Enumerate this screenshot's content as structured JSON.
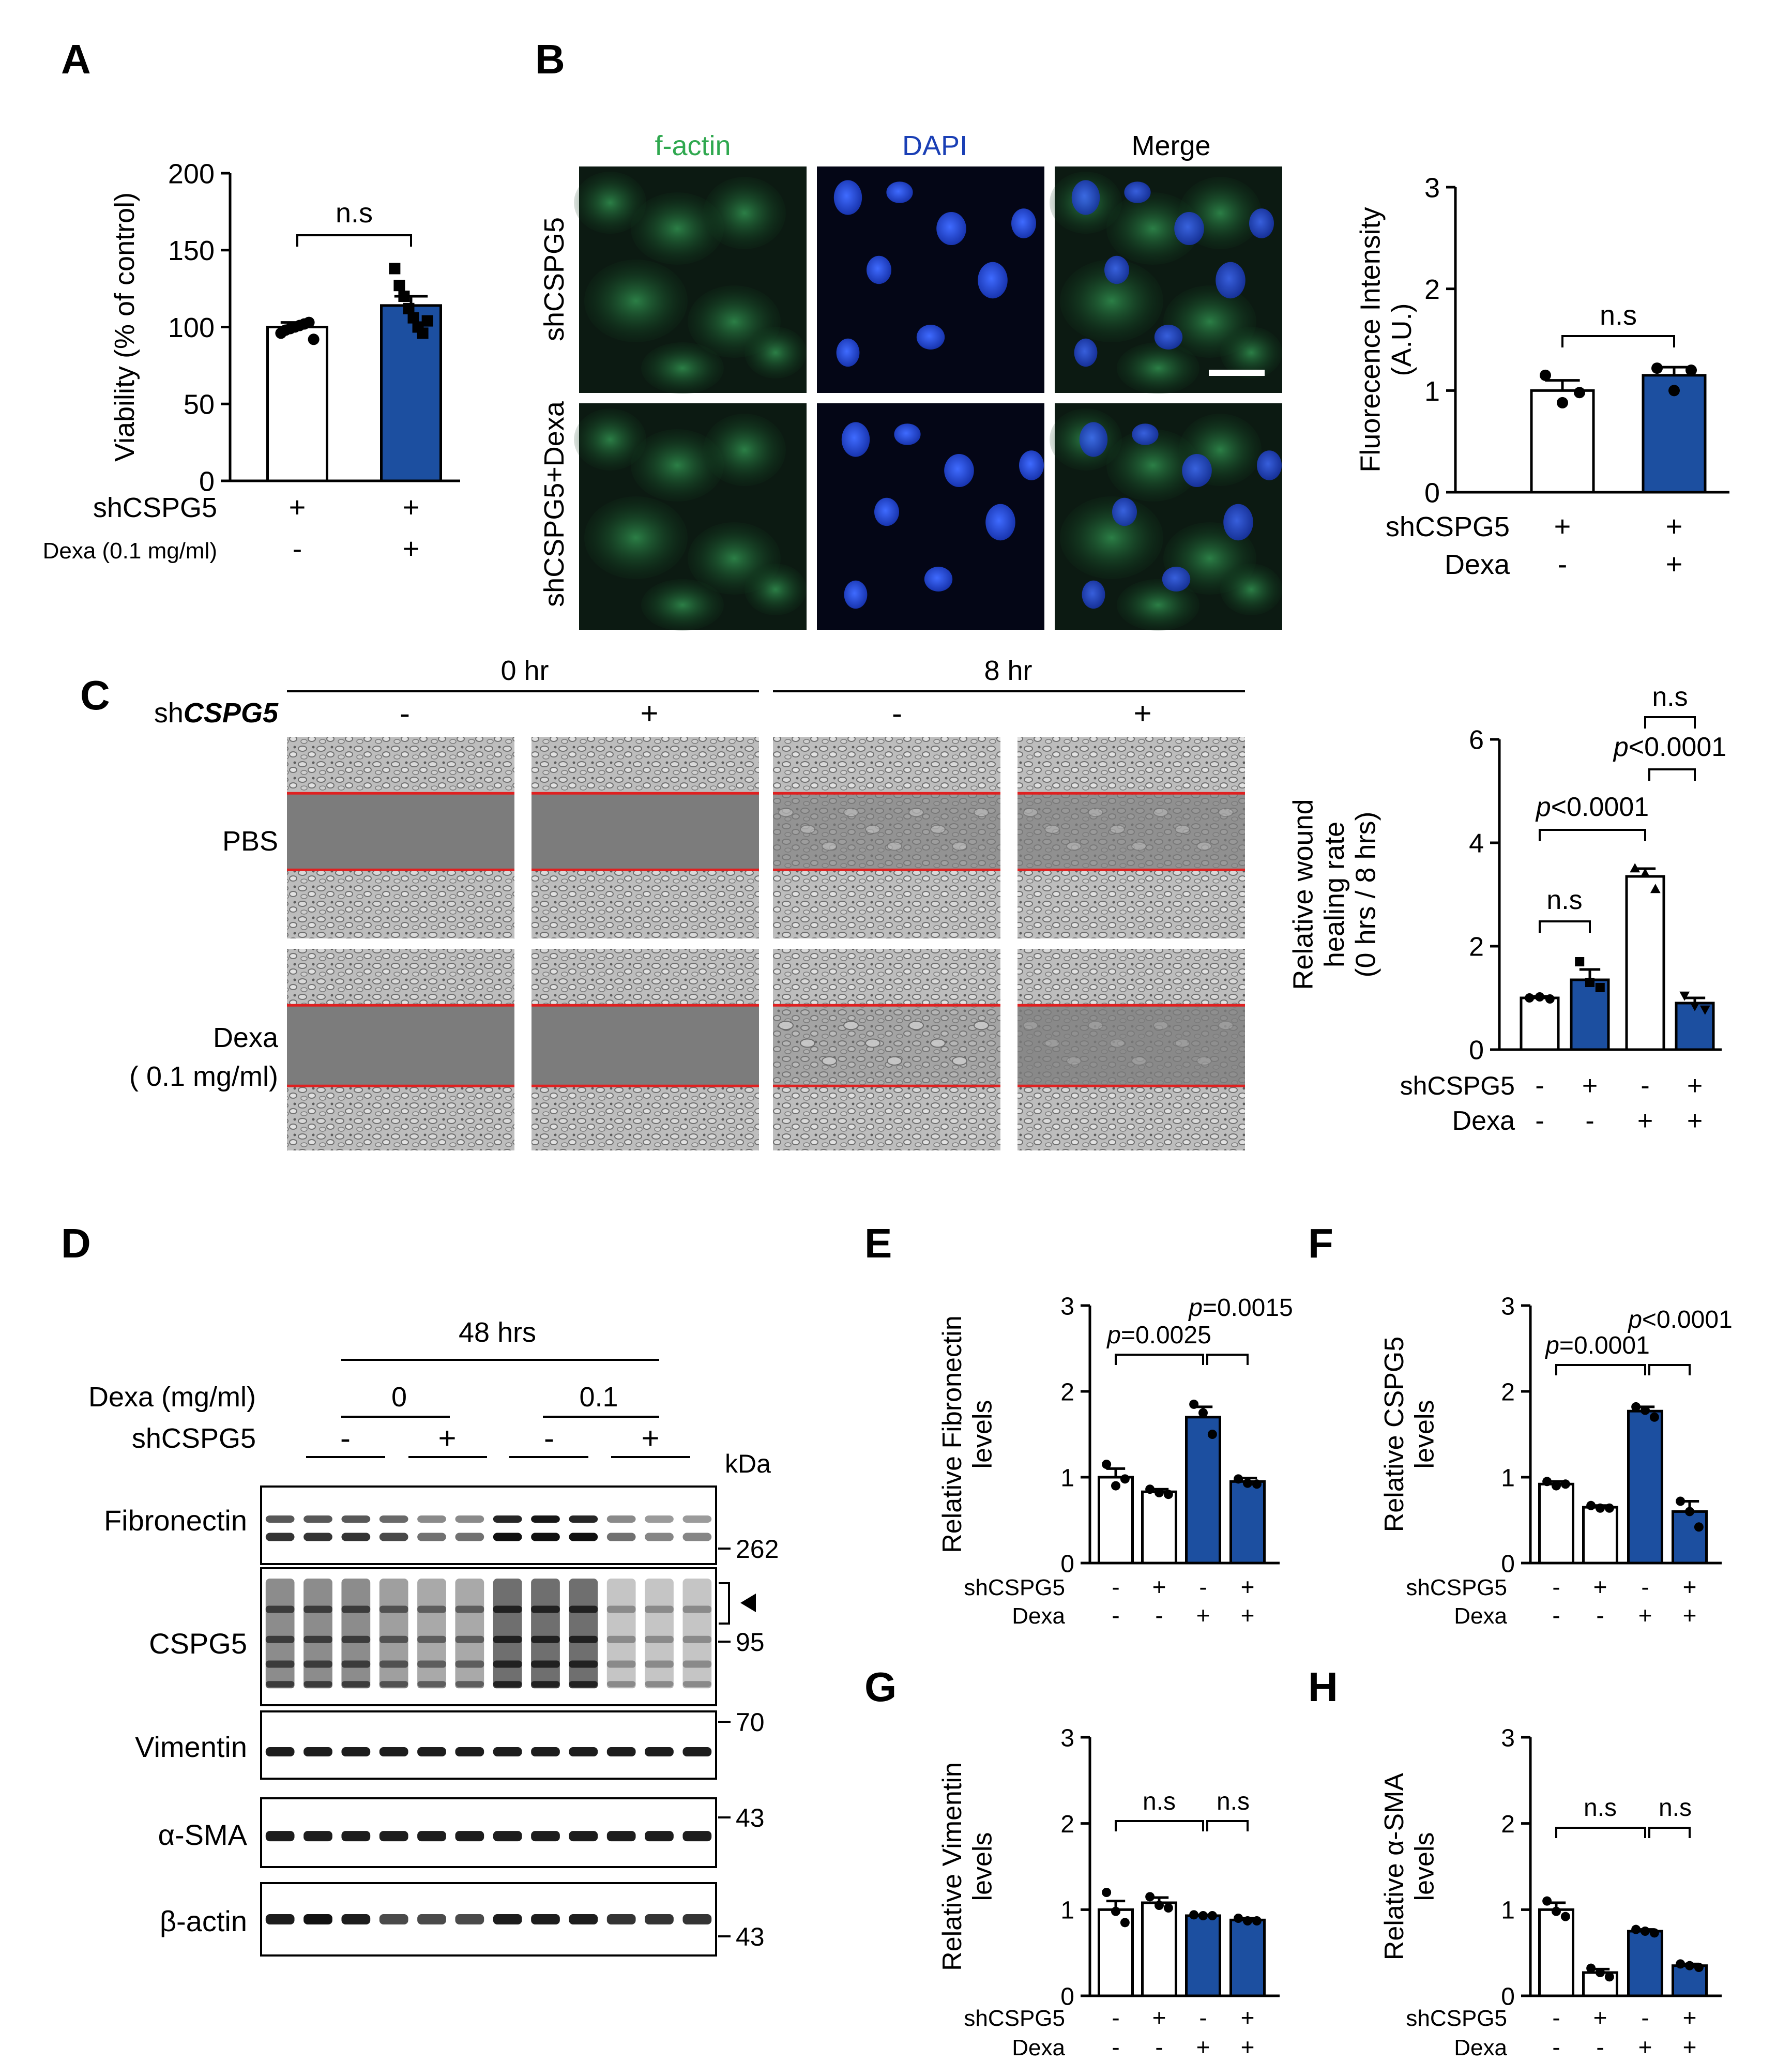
{
  "colors": {
    "blue": "#1c4fa0",
    "white": "#ffffff",
    "black": "#000000",
    "red": "#e02020",
    "green_text": "#2fa84f",
    "blue_text": "#1a3fb5"
  },
  "panel_letters": [
    "A",
    "B",
    "C",
    "D",
    "E",
    "F",
    "G",
    "H"
  ],
  "chart_data": [
    {
      "id": "A",
      "type": "bar",
      "ylabel": "Viability (% of control)",
      "ylim": [
        0,
        200
      ],
      "yticks": [
        0,
        50,
        100,
        150,
        200
      ],
      "row_labels": [
        "shCSPG5",
        "Dexa (0.1 mg/ml)"
      ],
      "bars": [
        {
          "value": 100,
          "sem": 3,
          "fill": "white",
          "signs": [
            "+",
            "-"
          ],
          "points": [
            96,
            98,
            99,
            100,
            101,
            102,
            103,
            92
          ],
          "marker": "circle"
        },
        {
          "value": 114,
          "sem": 6,
          "fill": "blue",
          "signs": [
            "+",
            "+"
          ],
          "points": [
            138,
            127,
            120,
            112,
            106,
            100,
            96,
            104
          ],
          "marker": "square"
        }
      ],
      "comparisons": [
        {
          "from": 0,
          "to": 1,
          "label": "n.s"
        }
      ]
    },
    {
      "id": "B",
      "type": "bar",
      "ylabel": "Fluorecence Intensity (A.U.)",
      "ylim": [
        0,
        3
      ],
      "yticks": [
        0,
        1,
        2,
        3
      ],
      "row_labels": [
        "shCSPG5",
        "Dexa"
      ],
      "bars": [
        {
          "value": 1.0,
          "sem": 0.1,
          "fill": "white",
          "signs": [
            "+",
            "-"
          ],
          "points": [
            1.15,
            0.88,
            0.98
          ],
          "marker": "circle"
        },
        {
          "value": 1.15,
          "sem": 0.08,
          "fill": "blue",
          "signs": [
            "+",
            "+"
          ],
          "points": [
            1.22,
            1.0,
            1.2
          ],
          "marker": "circle"
        }
      ],
      "comparisons": [
        {
          "from": 0,
          "to": 1,
          "label": "n.s"
        }
      ]
    },
    {
      "id": "C",
      "type": "bar",
      "ylabel": "Relative wound healing rate (0 hrs / 8 hrs)",
      "ylim": [
        0,
        6
      ],
      "yticks": [
        0,
        2,
        4,
        6
      ],
      "row_labels": [
        "shCSPG5",
        "Dexa"
      ],
      "bars": [
        {
          "value": 1.0,
          "sem": 0.03,
          "fill": "white",
          "signs": [
            "-",
            "-"
          ],
          "points": [
            1.0,
            1.02,
            0.98
          ],
          "marker": "circle"
        },
        {
          "value": 1.35,
          "sem": 0.2,
          "fill": "blue",
          "signs": [
            "+",
            "-"
          ],
          "points": [
            1.7,
            1.3,
            1.2
          ],
          "marker": "square"
        },
        {
          "value": 3.35,
          "sem": 0.15,
          "fill": "white",
          "signs": [
            "-",
            "+"
          ],
          "points": [
            3.5,
            3.4,
            3.1
          ],
          "marker": "triangle"
        },
        {
          "value": 0.9,
          "sem": 0.1,
          "fill": "blue",
          "signs": [
            "+",
            "+"
          ],
          "points": [
            1.05,
            0.85,
            0.78
          ],
          "marker": "triangle-down"
        }
      ],
      "comparisons": [
        {
          "from": 0,
          "to": 1,
          "label": "n.s"
        },
        {
          "from": 0,
          "to": 2,
          "label": "p<0.0001"
        },
        {
          "from": 2,
          "to": 3,
          "label": "p<0.0001"
        },
        {
          "from": 2,
          "to": 3,
          "label": "n.s"
        }
      ]
    },
    {
      "id": "E",
      "type": "bar",
      "ylabel": "Relative Fibronectin levels",
      "ylim": [
        0,
        3
      ],
      "yticks": [
        0,
        1,
        2,
        3
      ],
      "row_labels": [
        "shCSPG5",
        "Dexa"
      ],
      "bars": [
        {
          "value": 1.0,
          "sem": 0.1,
          "fill": "white",
          "signs": [
            "-",
            "-"
          ],
          "points": [
            1.15,
            0.9,
            0.98
          ]
        },
        {
          "value": 0.83,
          "sem": 0.03,
          "fill": "white",
          "signs": [
            "+",
            "-"
          ],
          "points": [
            0.86,
            0.82,
            0.8
          ]
        },
        {
          "value": 1.7,
          "sem": 0.12,
          "fill": "blue",
          "signs": [
            "-",
            "+"
          ],
          "points": [
            1.85,
            1.75,
            1.5
          ]
        },
        {
          "value": 0.95,
          "sem": 0.04,
          "fill": "blue",
          "signs": [
            "+",
            "+"
          ],
          "points": [
            0.98,
            0.93,
            0.92
          ]
        }
      ],
      "comparisons": [
        {
          "from": 0,
          "to": 2,
          "label": "p=0.0025"
        },
        {
          "from": 2,
          "to": 3,
          "label": "p=0.0015"
        }
      ]
    },
    {
      "id": "F",
      "type": "bar",
      "ylabel": "Relative CSPG5 levels",
      "ylim": [
        0,
        3
      ],
      "yticks": [
        0,
        1,
        2,
        3
      ],
      "row_labels": [
        "shCSPG5",
        "Dexa"
      ],
      "bars": [
        {
          "value": 0.92,
          "sem": 0.03,
          "fill": "white",
          "signs": [
            "-",
            "-"
          ],
          "points": [
            0.95,
            0.9,
            0.92
          ]
        },
        {
          "value": 0.65,
          "sem": 0.02,
          "fill": "white",
          "signs": [
            "+",
            "-"
          ],
          "points": [
            0.67,
            0.64,
            0.64
          ]
        },
        {
          "value": 1.77,
          "sem": 0.05,
          "fill": "blue",
          "signs": [
            "-",
            "+"
          ],
          "points": [
            1.82,
            1.78,
            1.7
          ]
        },
        {
          "value": 0.6,
          "sem": 0.12,
          "fill": "blue",
          "signs": [
            "+",
            "+"
          ],
          "points": [
            0.72,
            0.6,
            0.42
          ]
        }
      ],
      "comparisons": [
        {
          "from": 0,
          "to": 2,
          "label": "p=0.0001"
        },
        {
          "from": 2,
          "to": 3,
          "label": "p<0.0001"
        }
      ]
    },
    {
      "id": "G",
      "type": "bar",
      "ylabel": "Relative Vimentin levels",
      "ylim": [
        0,
        3
      ],
      "yticks": [
        0,
        1,
        2,
        3
      ],
      "row_labels": [
        "shCSPG5",
        "Dexa"
      ],
      "bars": [
        {
          "value": 1.0,
          "sem": 0.1,
          "fill": "white",
          "signs": [
            "-",
            "-"
          ],
          "points": [
            1.2,
            0.98,
            0.85
          ]
        },
        {
          "value": 1.08,
          "sem": 0.06,
          "fill": "white",
          "signs": [
            "+",
            "-"
          ],
          "points": [
            1.15,
            1.05,
            1.02
          ]
        },
        {
          "value": 0.93,
          "sem": 0.01,
          "fill": "blue",
          "signs": [
            "-",
            "+"
          ],
          "points": [
            0.94,
            0.93,
            0.93
          ]
        },
        {
          "value": 0.88,
          "sem": 0.02,
          "fill": "blue",
          "signs": [
            "+",
            "+"
          ],
          "points": [
            0.9,
            0.87,
            0.87
          ]
        }
      ],
      "comparisons": [
        {
          "from": 0,
          "to": 2,
          "label": "n.s"
        },
        {
          "from": 2,
          "to": 3,
          "label": "n.s"
        }
      ]
    },
    {
      "id": "H",
      "type": "bar",
      "ylabel": "Relative α-SMA levels",
      "ylim": [
        0,
        3
      ],
      "yticks": [
        0,
        1,
        2,
        3
      ],
      "row_labels": [
        "shCSPG5",
        "Dexa"
      ],
      "bars": [
        {
          "value": 1.0,
          "sem": 0.08,
          "fill": "white",
          "signs": [
            "-",
            "-"
          ],
          "points": [
            1.1,
            0.98,
            0.92
          ]
        },
        {
          "value": 0.27,
          "sem": 0.04,
          "fill": "white",
          "signs": [
            "+",
            "-"
          ],
          "points": [
            0.32,
            0.27,
            0.22
          ]
        },
        {
          "value": 0.75,
          "sem": 0.02,
          "fill": "blue",
          "signs": [
            "-",
            "+"
          ],
          "points": [
            0.77,
            0.75,
            0.73
          ]
        },
        {
          "value": 0.35,
          "sem": 0.02,
          "fill": "blue",
          "signs": [
            "+",
            "+"
          ],
          "points": [
            0.37,
            0.35,
            0.33
          ]
        }
      ],
      "comparisons": [
        {
          "from": 0,
          "to": 2,
          "label": "n.s"
        },
        {
          "from": 2,
          "to": 3,
          "label": "n.s"
        }
      ]
    }
  ],
  "panel_b": {
    "columns": [
      "f-actin",
      "DAPI",
      "Merge"
    ],
    "rows": [
      "shCSPG5",
      "shCSPG5+Dexa"
    ]
  },
  "panel_c": {
    "gene_prefix": "sh",
    "gene_name": "CSPG5",
    "time_headers": [
      "0 hr",
      "8 hr"
    ],
    "column_signs": [
      "-",
      "+",
      "-",
      "+"
    ],
    "rows": [
      "PBS",
      "Dexa",
      "( 0.1 mg/ml)"
    ]
  },
  "panel_d": {
    "time_header": "48 hrs",
    "dexa_label": "Dexa (mg/ml)",
    "dexa_values": [
      "0",
      "0.1"
    ],
    "sh_label": "shCSPG5",
    "sh_signs": [
      "-",
      "+",
      "-",
      "+"
    ],
    "kda_label": "kDa",
    "blots": [
      "Fibronectin",
      "CSPG5",
      "Vimentin",
      "α-SMA",
      "β-actin"
    ],
    "markers": [
      "262",
      "95",
      "70",
      "43",
      "43"
    ]
  }
}
